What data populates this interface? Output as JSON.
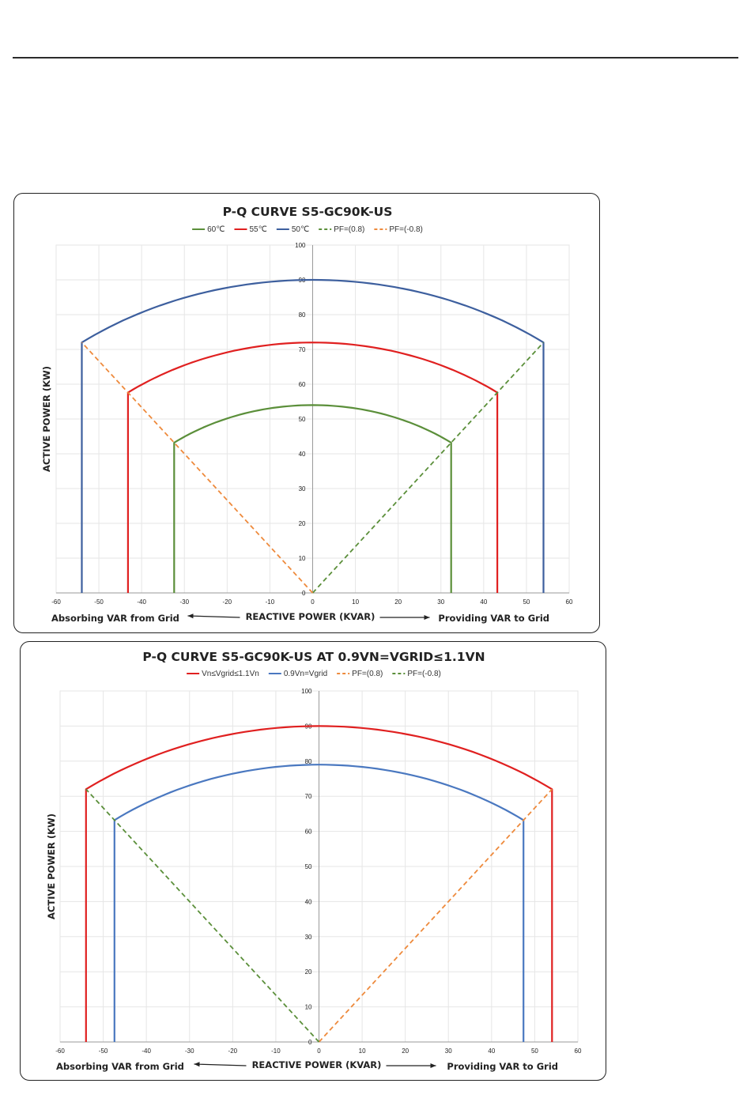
{
  "chart_data": [
    {
      "type": "line",
      "title": "P-Q CURVE S5-GC90K-US",
      "xlabel": "REACTIVE POWER (KVAR)",
      "ylabel": "ACTIVE POWER  (KW)",
      "left_note": "Absorbing VAR from Grid",
      "right_note": "Providing VAR to Grid",
      "xlim": [
        -60,
        60
      ],
      "ylim": [
        0,
        100
      ],
      "xticks": [
        -60,
        -50,
        -40,
        -30,
        -20,
        -10,
        0,
        10,
        20,
        30,
        40,
        50,
        60
      ],
      "yticks": [
        0,
        10,
        20,
        30,
        40,
        50,
        60,
        70,
        80,
        90,
        100
      ],
      "grid": true,
      "legend_position": "top",
      "series": [
        {
          "name": "60℃",
          "kind": "capability",
          "color": "#5b8f3a",
          "s_max": 54,
          "p_corner": 43.2,
          "q_corner": 32.4
        },
        {
          "name": "55℃",
          "kind": "capability",
          "color": "#e02020",
          "s_max": 72,
          "p_corner": 57.6,
          "q_corner": 43.2
        },
        {
          "name": "50℃",
          "kind": "capability",
          "color": "#3d5f9e",
          "s_max": 90,
          "p_corner": 72,
          "q_corner": 54
        },
        {
          "name": "PF=(0.8)",
          "kind": "pf",
          "color": "#5b8f3a",
          "x": [
            0,
            54
          ],
          "y": [
            0,
            72
          ]
        },
        {
          "name": "PF=(-0.8)",
          "kind": "pf",
          "color": "#ee8a3c",
          "x": [
            0,
            -54
          ],
          "y": [
            0,
            72
          ]
        }
      ]
    },
    {
      "type": "line",
      "title": "P-Q CURVE S5-GC90K-US AT 0.9VN=VGRID≤1.1VN",
      "xlabel": "REACTIVE POWER (KVAR)",
      "ylabel": "ACTIVE POWER  (KW)",
      "left_note": "Absorbing VAR from Grid",
      "right_note": "Providing VAR to Grid",
      "xlim": [
        -60,
        60
      ],
      "ylim": [
        0,
        100
      ],
      "xticks": [
        -60,
        -50,
        -40,
        -30,
        -20,
        -10,
        0,
        10,
        20,
        30,
        40,
        50,
        60
      ],
      "yticks": [
        0,
        10,
        20,
        30,
        40,
        50,
        60,
        70,
        80,
        90,
        100
      ],
      "grid": true,
      "legend_position": "top",
      "series": [
        {
          "name": "Vn≤Vgrid≤1.1Vn",
          "kind": "capability",
          "color": "#e02020",
          "s_max": 90,
          "p_corner": 72,
          "q_corner": 54
        },
        {
          "name": "0.9Vn=Vgrid",
          "kind": "capability",
          "color": "#4a78c0",
          "s_max": 79,
          "p_corner": 63.2,
          "q_corner": 47.4
        },
        {
          "name": "PF=(0.8)",
          "kind": "pf",
          "color": "#ee8a3c",
          "x": [
            0,
            54
          ],
          "y": [
            0,
            72
          ]
        },
        {
          "name": "PF=(-0.8)",
          "kind": "pf",
          "color": "#5b8f3a",
          "x": [
            0,
            -54
          ],
          "y": [
            0,
            72
          ]
        }
      ]
    }
  ]
}
